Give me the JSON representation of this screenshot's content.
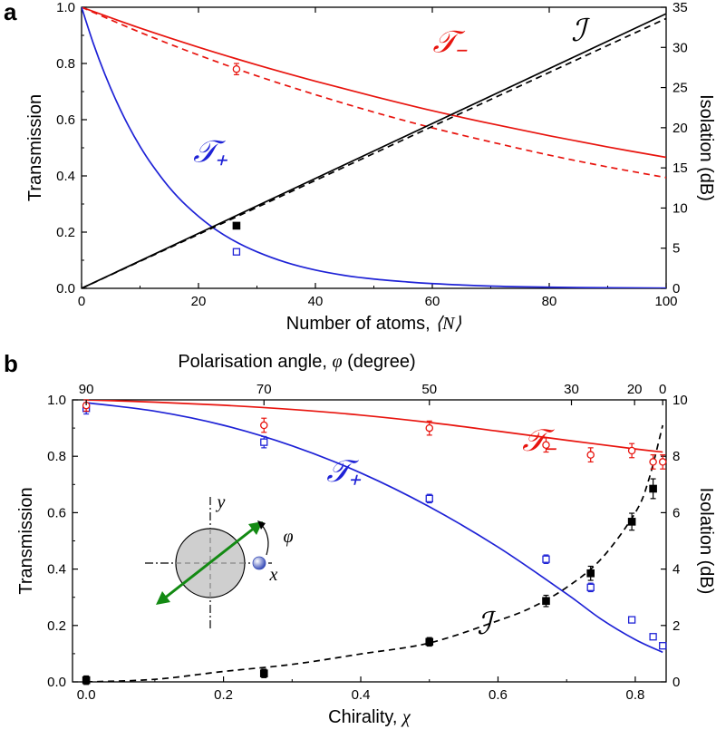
{
  "colors": {
    "red": "#e8140e",
    "blue": "#1e22d6",
    "black": "#000000",
    "green": "#138a13"
  },
  "chart_data": [
    {
      "panel": "a",
      "type": "line",
      "xlabel": "Number of atoms,",
      "xlabel_symbol": "⟨N⟩",
      "ylabel": "Transmission",
      "y2label": "Isolation (dB)",
      "xlim": [
        0,
        100
      ],
      "ylim": [
        0,
        1.0
      ],
      "y2lim": [
        0,
        35
      ],
      "xticks": [
        0,
        20,
        40,
        60,
        80,
        100
      ],
      "xtick_labels": [
        "0",
        "20",
        "40",
        "60",
        "80",
        "100"
      ],
      "yticks": [
        0,
        0.2,
        0.4,
        0.6,
        0.8,
        1.0
      ],
      "ytick_labels": [
        "0.0",
        "0.2",
        "0.4",
        "0.6",
        "0.8",
        "1.0"
      ],
      "y2ticks": [
        0,
        5,
        10,
        15,
        20,
        25,
        30,
        35
      ],
      "y2tick_labels": [
        "0",
        "5",
        "10",
        "15",
        "20",
        "25",
        "30",
        "35"
      ],
      "curve_labels": [
        {
          "text": "𝒯₋",
          "color": "red",
          "x": 63,
          "y": 0.84
        },
        {
          "text": "𝒯₊",
          "color": "blue",
          "x": 22,
          "y": 0.45
        },
        {
          "text": "ℐ",
          "color": "black",
          "x": 85,
          "y": 0.88
        }
      ],
      "series": [
        {
          "name": "𝒯₋",
          "color": "red",
          "style": "solid",
          "axis": "left",
          "x": [
            0,
            10,
            20,
            30,
            40,
            50,
            60,
            70,
            80,
            90,
            100
          ],
          "y": [
            1.0,
            0.926,
            0.858,
            0.795,
            0.737,
            0.683,
            0.632,
            0.586,
            0.543,
            0.503,
            0.466
          ]
        },
        {
          "name": "𝒯₋ (dashed)",
          "color": "red",
          "style": "dashed",
          "axis": "left",
          "x": [
            0,
            10,
            20,
            30,
            40,
            50,
            60,
            70,
            80,
            90,
            100
          ],
          "y": [
            1.0,
            0.911,
            0.83,
            0.756,
            0.689,
            0.627,
            0.571,
            0.521,
            0.474,
            0.432,
            0.394
          ]
        },
        {
          "name": "𝒯₊",
          "color": "blue",
          "style": "solid",
          "axis": "left",
          "x": [
            0,
            2,
            4,
            6,
            8,
            10,
            12,
            15,
            18,
            22,
            26,
            30,
            35,
            40,
            45,
            50,
            55,
            60,
            70,
            80,
            90,
            100
          ],
          "y": [
            1.0,
            0.872,
            0.761,
            0.664,
            0.579,
            0.505,
            0.441,
            0.359,
            0.293,
            0.223,
            0.17,
            0.13,
            0.092,
            0.065,
            0.046,
            0.033,
            0.024,
            0.017,
            0.008,
            0.004,
            0.002,
            0.001
          ]
        },
        {
          "name": "ℐ",
          "color": "black",
          "style": "solid",
          "axis": "right",
          "x": [
            0,
            100
          ],
          "y": [
            0,
            34.2
          ]
        },
        {
          "name": "ℐ (dashed)",
          "color": "black",
          "style": "dashed",
          "axis": "right",
          "x": [
            0,
            100
          ],
          "y": [
            0,
            33.6
          ]
        }
      ],
      "points": [
        {
          "x": 26.5,
          "y": 0.78,
          "err": 0.02,
          "marker": "open-circle",
          "color": "red",
          "axis": "left"
        },
        {
          "x": 26.5,
          "y": 0.13,
          "err": 0.005,
          "marker": "open-square",
          "color": "blue",
          "axis": "left"
        },
        {
          "x": 26.5,
          "y": 7.8,
          "err": 0.25,
          "marker": "filled-square",
          "color": "black",
          "axis": "right"
        }
      ]
    },
    {
      "panel": "b",
      "type": "line",
      "xlabel": "Chirality,",
      "xlabel_symbol": "χ",
      "x2label": "Polarisation angle,",
      "x2label_symbol": "φ",
      "x2label_unit": "(degree)",
      "ylabel": "Transmission",
      "y2label": "Isolation (dB)",
      "xlim": [
        -0.02,
        0.845
      ],
      "ylim": [
        0,
        1.0
      ],
      "y2lim": [
        0,
        10
      ],
      "xticks": [
        0,
        0.2,
        0.4,
        0.6,
        0.8
      ],
      "xtick_labels": [
        "0.0",
        "0.2",
        "0.4",
        "0.6",
        "0.8"
      ],
      "yticks": [
        0,
        0.2,
        0.4,
        0.6,
        0.8,
        1.0
      ],
      "ytick_labels": [
        "0.0",
        "0.2",
        "0.4",
        "0.6",
        "0.8",
        "1.0"
      ],
      "y2ticks": [
        0,
        2,
        4,
        6,
        8,
        10
      ],
      "y2tick_labels": [
        "0",
        "2",
        "4",
        "6",
        "8",
        "10"
      ],
      "x2ticks": [
        0,
        0.259,
        0.5,
        0.707,
        0.799,
        0.84
      ],
      "x2tick_labels": [
        "90",
        "70",
        "50",
        "30",
        "20",
        "0"
      ],
      "curve_labels": [
        {
          "text": "𝒯₋",
          "color": "red",
          "x": 0.66,
          "y": 0.82
        },
        {
          "text": "𝒯₊",
          "color": "blue",
          "x": 0.375,
          "y": 0.71
        },
        {
          "text": "ℐ",
          "color": "black",
          "x": 0.58,
          "y": 0.17
        }
      ],
      "inset_labels": {
        "y": "y",
        "x": "x",
        "angle": "φ"
      },
      "series": [
        {
          "name": "𝒯₋",
          "color": "red",
          "style": "solid",
          "axis": "left",
          "x": [
            0,
            0.1,
            0.2,
            0.3,
            0.4,
            0.5,
            0.6,
            0.7,
            0.8,
            0.84
          ],
          "y": [
            1.0,
            0.992,
            0.981,
            0.966,
            0.946,
            0.92,
            0.889,
            0.857,
            0.826,
            0.815
          ]
        },
        {
          "name": "𝒯₊",
          "color": "blue",
          "style": "solid",
          "axis": "left",
          "x": [
            0,
            0.1,
            0.2,
            0.3,
            0.4,
            0.5,
            0.6,
            0.7,
            0.75,
            0.8,
            0.84
          ],
          "y": [
            0.99,
            0.96,
            0.91,
            0.837,
            0.741,
            0.621,
            0.478,
            0.312,
            0.223,
            0.15,
            0.105
          ]
        },
        {
          "name": "ℐ",
          "color": "black",
          "style": "dashed",
          "axis": "right",
          "x": [
            0,
            0.1,
            0.2,
            0.3,
            0.4,
            0.5,
            0.6,
            0.65,
            0.7,
            0.75,
            0.8,
            0.82,
            0.84
          ],
          "y": [
            0,
            0.09,
            0.37,
            0.62,
            0.99,
            1.38,
            2.17,
            2.65,
            3.35,
            4.35,
            6.0,
            7.2,
            9.1
          ]
        }
      ],
      "points": [
        {
          "x": 0.0,
          "y": 0.97,
          "err": 0.02,
          "marker": "open-square",
          "color": "blue",
          "axis": "left"
        },
        {
          "x": 0.259,
          "y": 0.85,
          "err": 0.02,
          "marker": "open-square",
          "color": "blue",
          "axis": "left"
        },
        {
          "x": 0.5,
          "y": 0.65,
          "err": 0.015,
          "marker": "open-square",
          "color": "blue",
          "axis": "left"
        },
        {
          "x": 0.67,
          "y": 0.435,
          "err": 0.015,
          "marker": "open-square",
          "color": "blue",
          "axis": "left"
        },
        {
          "x": 0.735,
          "y": 0.335,
          "err": 0.015,
          "marker": "open-square",
          "color": "blue",
          "axis": "left"
        },
        {
          "x": 0.795,
          "y": 0.22,
          "err": 0.01,
          "marker": "open-square",
          "color": "blue",
          "axis": "left"
        },
        {
          "x": 0.826,
          "y": 0.16,
          "err": 0.01,
          "marker": "open-square",
          "color": "blue",
          "axis": "left"
        },
        {
          "x": 0.84,
          "y": 0.128,
          "err": 0.01,
          "marker": "open-square",
          "color": "blue",
          "axis": "left"
        },
        {
          "x": 0.0,
          "y": 0.98,
          "err": 0.02,
          "marker": "open-circle",
          "color": "red",
          "axis": "left"
        },
        {
          "x": 0.259,
          "y": 0.91,
          "err": 0.025,
          "marker": "open-circle",
          "color": "red",
          "axis": "left"
        },
        {
          "x": 0.5,
          "y": 0.9,
          "err": 0.025,
          "marker": "open-circle",
          "color": "red",
          "axis": "left"
        },
        {
          "x": 0.67,
          "y": 0.84,
          "err": 0.025,
          "marker": "open-circle",
          "color": "red",
          "axis": "left"
        },
        {
          "x": 0.735,
          "y": 0.805,
          "err": 0.025,
          "marker": "open-circle",
          "color": "red",
          "axis": "left"
        },
        {
          "x": 0.795,
          "y": 0.82,
          "err": 0.025,
          "marker": "open-circle",
          "color": "red",
          "axis": "left"
        },
        {
          "x": 0.826,
          "y": 0.78,
          "err": 0.025,
          "marker": "open-circle",
          "color": "red",
          "axis": "left"
        },
        {
          "x": 0.84,
          "y": 0.78,
          "err": 0.025,
          "marker": "open-circle",
          "color": "red",
          "axis": "left"
        },
        {
          "x": 0.0,
          "y": 0.06,
          "err": 0.15,
          "marker": "filled-square",
          "color": "black",
          "axis": "right"
        },
        {
          "x": 0.259,
          "y": 0.3,
          "err": 0.15,
          "marker": "filled-square",
          "color": "black",
          "axis": "right"
        },
        {
          "x": 0.5,
          "y": 1.42,
          "err": 0.15,
          "marker": "filled-square",
          "color": "black",
          "axis": "right"
        },
        {
          "x": 0.67,
          "y": 2.87,
          "err": 0.2,
          "marker": "filled-square",
          "color": "black",
          "axis": "right"
        },
        {
          "x": 0.735,
          "y": 3.85,
          "err": 0.25,
          "marker": "filled-square",
          "color": "black",
          "axis": "right"
        },
        {
          "x": 0.795,
          "y": 5.68,
          "err": 0.3,
          "marker": "filled-square",
          "color": "black",
          "axis": "right"
        },
        {
          "x": 0.826,
          "y": 6.85,
          "err": 0.35,
          "marker": "filled-square",
          "color": "black",
          "axis": "right"
        }
      ]
    }
  ]
}
